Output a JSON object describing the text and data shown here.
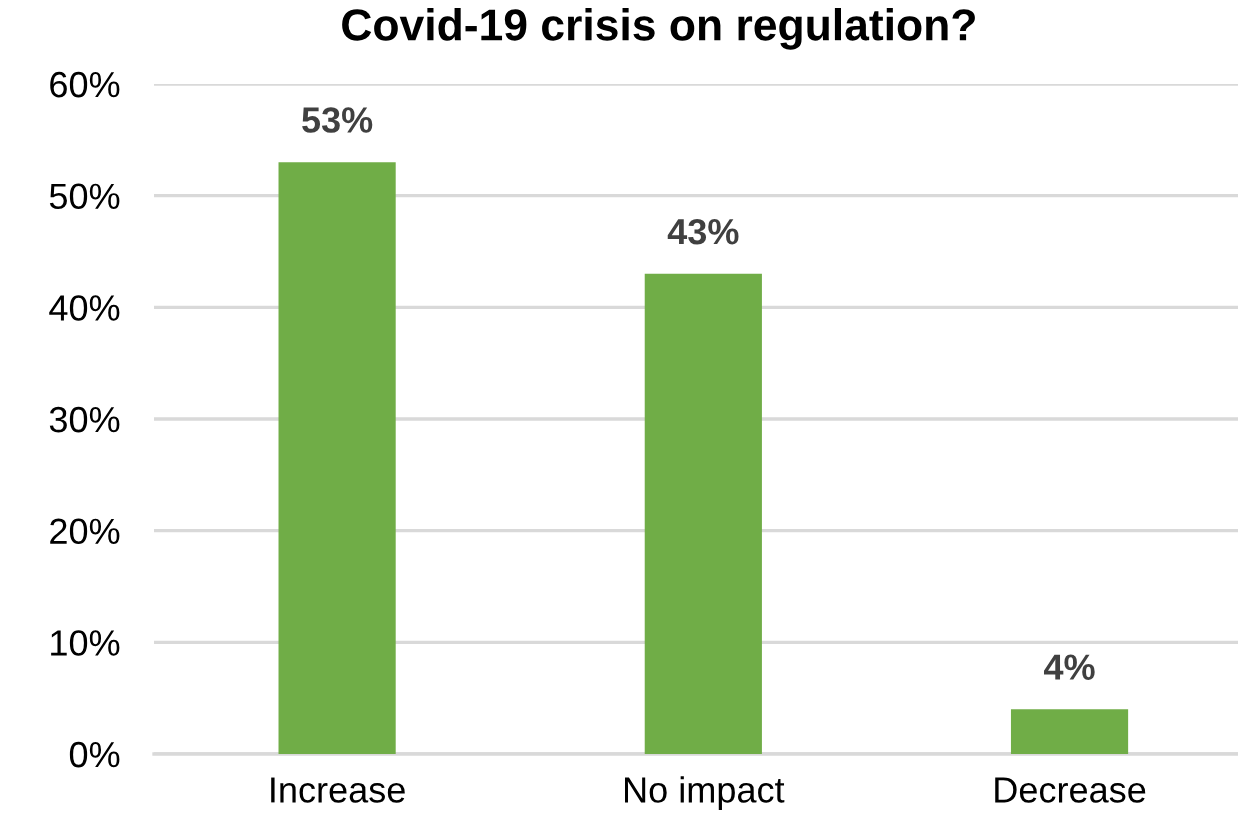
{
  "chart_data": {
    "type": "bar",
    "title": "Covid-19 crisis on regulation?",
    "categories": [
      "Increase",
      "No impact",
      "Decrease"
    ],
    "values": [
      53,
      43,
      4
    ],
    "color": "#70ad47",
    "value_labels": [
      "53%",
      "43%",
      "4%"
    ],
    "ylim": [
      0,
      60
    ],
    "yticks": [
      {
        "value": 0,
        "label": "0%"
      },
      {
        "value": 10,
        "label": "10%"
      },
      {
        "value": 20,
        "label": "20%"
      },
      {
        "value": 30,
        "label": "30%"
      },
      {
        "value": 40,
        "label": "40%"
      },
      {
        "value": 50,
        "label": "50%"
      },
      {
        "value": 60,
        "label": "60%"
      }
    ],
    "grid": "y",
    "legend": false
  }
}
